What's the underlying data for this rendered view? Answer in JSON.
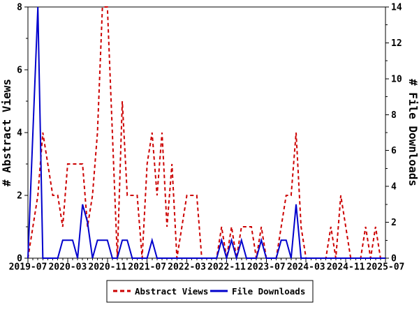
{
  "chart_data": {
    "type": "line",
    "title": "",
    "x_axis": {
      "start": "2019-07",
      "end": "2025-07",
      "interval": "monthly",
      "n_points": 73,
      "major_tick_every_months": 8,
      "major_labels": [
        "2019-07",
        "2020-03",
        "2020-11",
        "2021-07",
        "2022-03",
        "2022-11",
        "2023-07",
        "2024-03",
        "2024-11",
        "2025-07"
      ]
    },
    "ylabel": "# Abstract Views",
    "y2label": "# File Downloads",
    "ylim": [
      0,
      8
    ],
    "y2lim": [
      0,
      14
    ],
    "y_major_ticks": [
      0,
      2,
      4,
      6,
      8
    ],
    "y_minor_ticks": [
      1,
      3,
      5,
      7
    ],
    "y2_major_ticks": [
      0,
      2,
      4,
      6,
      8,
      10,
      12,
      14
    ],
    "y2_minor_ticks": [
      1,
      3,
      5,
      7,
      9,
      11,
      13
    ],
    "grid": "off",
    "legend_position": "bottom-center",
    "series": [
      {
        "name": "Abstract Views",
        "axis": "left",
        "color": "#cc0000",
        "style": "dashed",
        "values": [
          0,
          1,
          2,
          4,
          3,
          2,
          2,
          1,
          3,
          3,
          3,
          3,
          1,
          2,
          4,
          8,
          8,
          4,
          0,
          5,
          2,
          2,
          2,
          0,
          3,
          4,
          2,
          4,
          1,
          3,
          0,
          1,
          2,
          2,
          2,
          0,
          0,
          0,
          0,
          1,
          0,
          1,
          0,
          1,
          1,
          1,
          0,
          1,
          0,
          0,
          0,
          1,
          2,
          2,
          4,
          1,
          0,
          0,
          0,
          0,
          0,
          1,
          0,
          2,
          1,
          0,
          0,
          0,
          1,
          0,
          1,
          0,
          0
        ]
      },
      {
        "name": "File Downloads",
        "axis": "right",
        "color": "#0000cc",
        "style": "solid",
        "values": [
          0,
          7,
          14,
          0,
          0,
          0,
          0,
          1,
          1,
          1,
          0,
          3,
          2,
          0,
          1,
          1,
          1,
          0,
          0,
          1,
          1,
          0,
          0,
          0,
          0,
          1,
          0,
          0,
          0,
          0,
          0,
          0,
          0,
          0,
          0,
          0,
          0,
          0,
          0,
          1,
          0,
          1,
          0,
          1,
          0,
          0,
          0,
          1,
          0,
          0,
          0,
          1,
          1,
          0,
          3,
          0,
          0,
          0,
          0,
          0,
          0,
          0,
          0,
          0,
          0,
          0,
          0,
          0,
          0,
          0,
          0,
          0,
          0
        ]
      }
    ],
    "axis_color": "#000000",
    "background_color": "#ffffff"
  }
}
